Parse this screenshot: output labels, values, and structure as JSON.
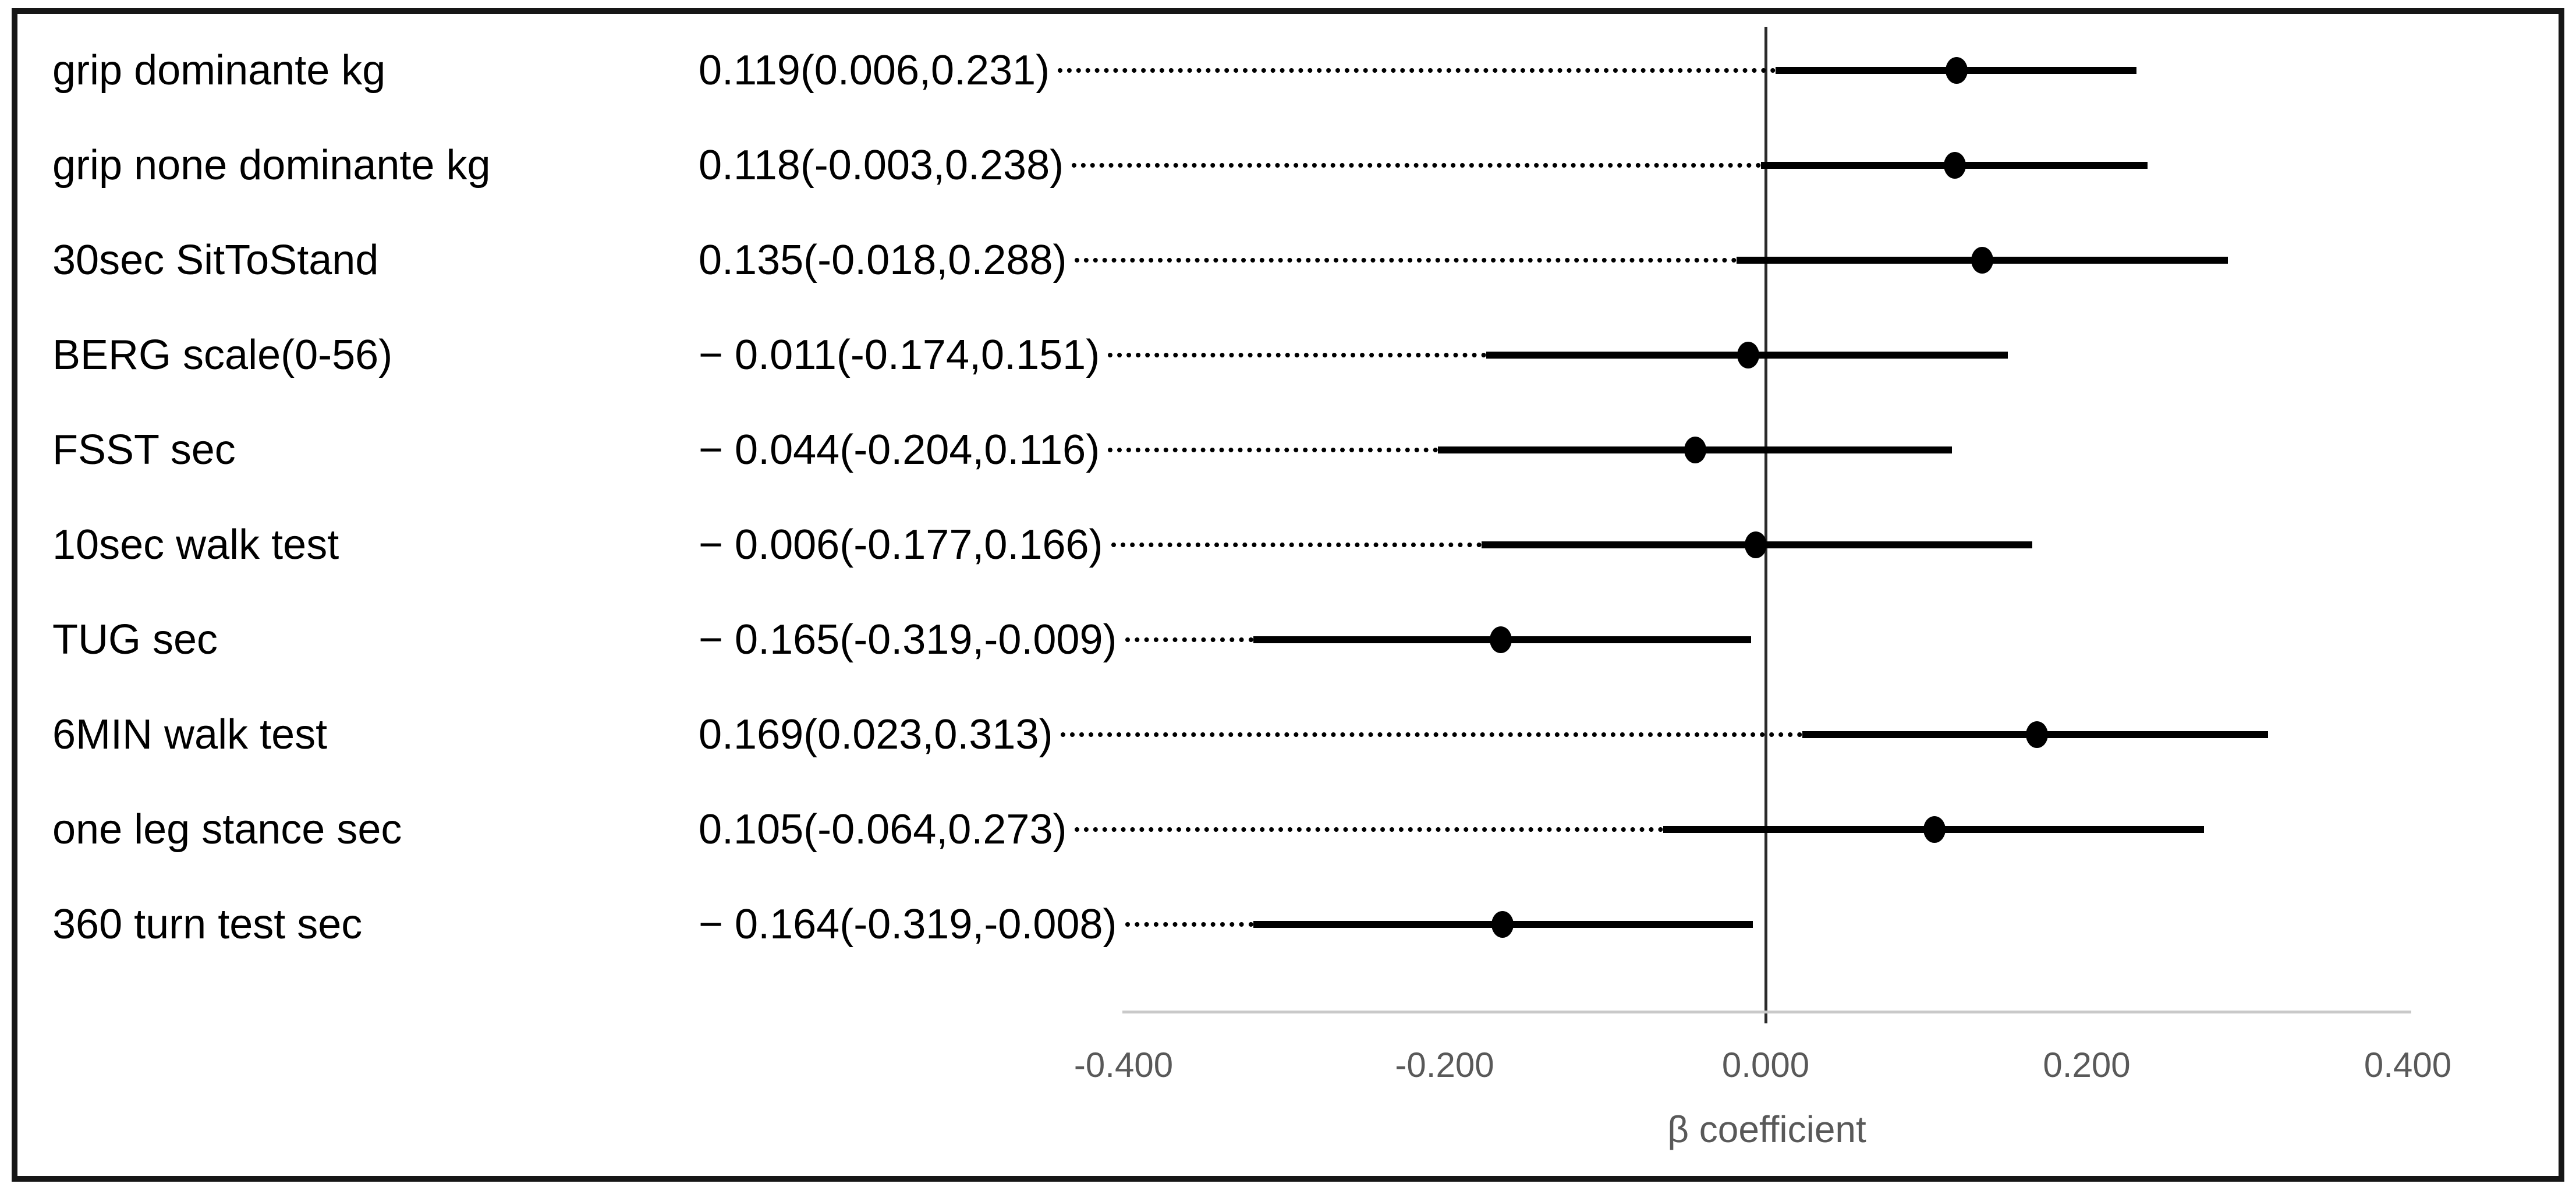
{
  "figure": {
    "background": "#ffffff",
    "frame_color": "#161616"
  },
  "chart_data": {
    "type": "scatter",
    "subtype": "forest-plot",
    "title": "",
    "xlabel": "β coefficient",
    "ylabel": "",
    "grid": false,
    "legend": false,
    "x_axis": {
      "min": -0.4,
      "max": 0.4,
      "zero_reference_line": true,
      "axis_line_color": "#c9c9c9",
      "tick_label_color": "#595959",
      "ticks": [
        {
          "value": -0.4,
          "label": "-0.400"
        },
        {
          "value": -0.2,
          "label": "-0.200"
        },
        {
          "value": 0.0,
          "label": "0.000"
        },
        {
          "value": 0.2,
          "label": "0.200"
        },
        {
          "value": 0.4,
          "label": "0.400"
        }
      ]
    },
    "marker_color": "#000000",
    "ci_line_color": "#000000",
    "leader_line_style": "dotted",
    "rows": [
      {
        "label": "grip dominante kg",
        "value_text": "0.119(0.006,0.231)",
        "beta": 0.119,
        "ci_low": 0.006,
        "ci_high": 0.231
      },
      {
        "label": "grip none dominante kg",
        "value_text": "0.118(-0.003,0.238)",
        "beta": 0.118,
        "ci_low": -0.003,
        "ci_high": 0.238
      },
      {
        "label": "30sec SitToStand",
        "value_text": "0.135(-0.018,0.288)",
        "beta": 0.135,
        "ci_low": -0.018,
        "ci_high": 0.288
      },
      {
        "label": "BERG scale(0-56)",
        "value_text": "− 0.011(-0.174,0.151)",
        "beta": -0.011,
        "ci_low": -0.174,
        "ci_high": 0.151
      },
      {
        "label": "FSST sec",
        "value_text": "− 0.044(-0.204,0.116)",
        "beta": -0.044,
        "ci_low": -0.204,
        "ci_high": 0.116
      },
      {
        "label": "10sec walk test",
        "value_text": "− 0.006(-0.177,0.166)",
        "beta": -0.006,
        "ci_low": -0.177,
        "ci_high": 0.166
      },
      {
        "label": "TUG sec",
        "value_text": "− 0.165(-0.319,-0.009)",
        "beta": -0.165,
        "ci_low": -0.319,
        "ci_high": -0.009
      },
      {
        "label": "6MIN walk test",
        "value_text": "0.169(0.023,0.313)",
        "beta": 0.169,
        "ci_low": 0.023,
        "ci_high": 0.313
      },
      {
        "label": "one leg stance sec",
        "value_text": "0.105(-0.064,0.273)",
        "beta": 0.105,
        "ci_low": -0.064,
        "ci_high": 0.273
      },
      {
        "label": "360 turn test sec",
        "value_text": "− 0.164(-0.319,-0.008)",
        "beta": -0.164,
        "ci_low": -0.319,
        "ci_high": -0.008
      }
    ]
  }
}
